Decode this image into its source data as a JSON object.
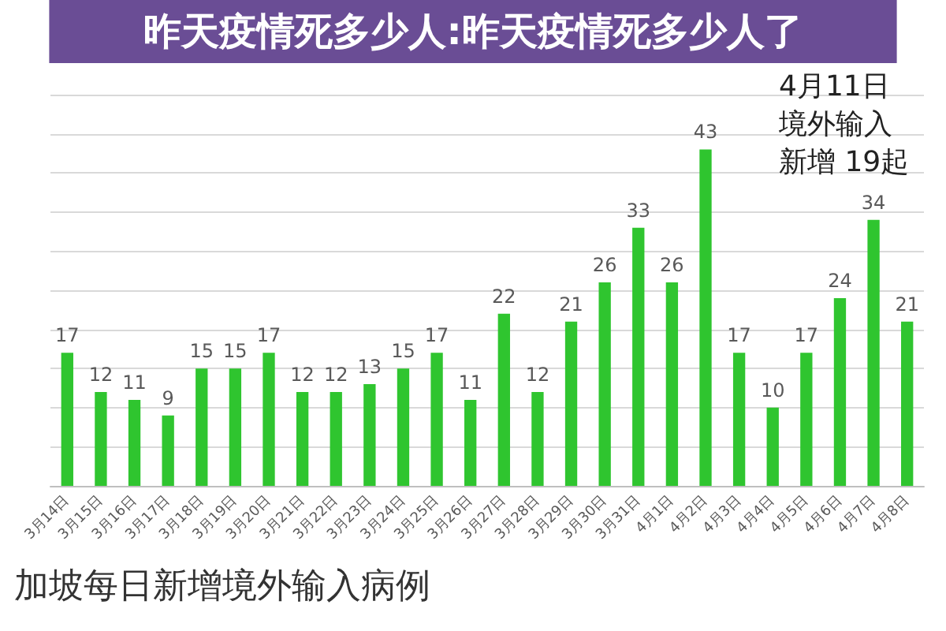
{
  "chart_data": {
    "type": "bar",
    "title": "昨天疫情死多少人:昨天疫情死多少人了",
    "subtitle": "加坡每日新增境外输入病例",
    "annotations": [
      "4月11日",
      "境外输入",
      "新增 19起"
    ],
    "categories": [
      "3月14日",
      "3月15日",
      "3月16日",
      "3月17日",
      "3月18日",
      "3月19日",
      "3月20日",
      "3月21日",
      "3月22日",
      "3月23日",
      "3月24日",
      "3月25日",
      "3月26日",
      "3月27日",
      "3月28日",
      "3月29日",
      "3月30日",
      "3月31日",
      "4月1日",
      "4月2日",
      "4月3日",
      "4月4日",
      "4月5日",
      "4月6日",
      "4月7日",
      "4月8日"
    ],
    "values": [
      17,
      12,
      11,
      9,
      15,
      15,
      17,
      12,
      12,
      13,
      15,
      17,
      11,
      22,
      12,
      21,
      26,
      33,
      26,
      43,
      17,
      10,
      17,
      24,
      34,
      21
    ],
    "color": "#2fc52f",
    "ylim": [
      0,
      50
    ],
    "yticks": [
      0,
      5,
      10,
      15,
      20,
      25,
      30,
      35,
      40,
      45,
      50
    ],
    "grid": "y",
    "tick_labels": "x",
    "data_labels": true
  }
}
